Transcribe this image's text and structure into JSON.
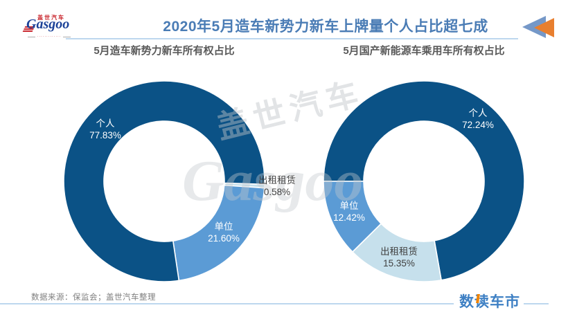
{
  "header": {
    "title": "2020年5月造车新势力新车上牌量个人占比超七成",
    "logo": {
      "brand_cn": "盖世汽车",
      "brand_en": "Gasgoo",
      "tagline": "·············"
    }
  },
  "colors": {
    "dark_blue": "#0B5286",
    "medium_blue": "#5B9BD5",
    "light_blue": "#C6E0EC",
    "title_blue": "#4A7CB5",
    "rule_blue": "#BDD7EE",
    "accent_orange": "#F08300",
    "arrow_blue": "#7598C8",
    "arrow_orange": "#E87F2F"
  },
  "chart_data": [
    {
      "type": "pie",
      "title": "5月造车新势力新车所有权占比",
      "donut_hole_ratio": 0.6,
      "start_angle_deg": 91.7,
      "unit": "%",
      "categories": [
        "出租租赁",
        "单位",
        "个人"
      ],
      "values": [
        0.58,
        21.6,
        77.83
      ],
      "slices": [
        {
          "label": "出租租赁",
          "value": 0.58,
          "display": "0.58%",
          "color": "#C6E0EC"
        },
        {
          "label": "单位",
          "value": 21.6,
          "display": "21.60%",
          "color": "#5B9BD5"
        },
        {
          "label": "个人",
          "value": 77.83,
          "display": "77.83%",
          "color": "#0B5286"
        }
      ]
    },
    {
      "type": "pie",
      "title": "5月国产新能源车乘用车所有权占比",
      "donut_hole_ratio": 0.6,
      "start_angle_deg": 270,
      "unit": "%",
      "categories": [
        "个人",
        "出租租赁",
        "单位"
      ],
      "values": [
        72.24,
        15.35,
        12.42
      ],
      "slices": [
        {
          "label": "个人",
          "value": 72.24,
          "display": "72.24%",
          "color": "#0B5286"
        },
        {
          "label": "出租租赁",
          "value": 15.35,
          "display": "15.35%",
          "color": "#C6E0EC"
        },
        {
          "label": "单位",
          "value": 12.42,
          "display": "12.42%",
          "color": "#5B9BD5"
        }
      ]
    }
  ],
  "watermark": {
    "text_cn": "盖世汽车",
    "text_en": "Gasgoo"
  },
  "footer": {
    "source": "数据来源：保监会；盖世汽车整理",
    "brand": "数读车市"
  }
}
